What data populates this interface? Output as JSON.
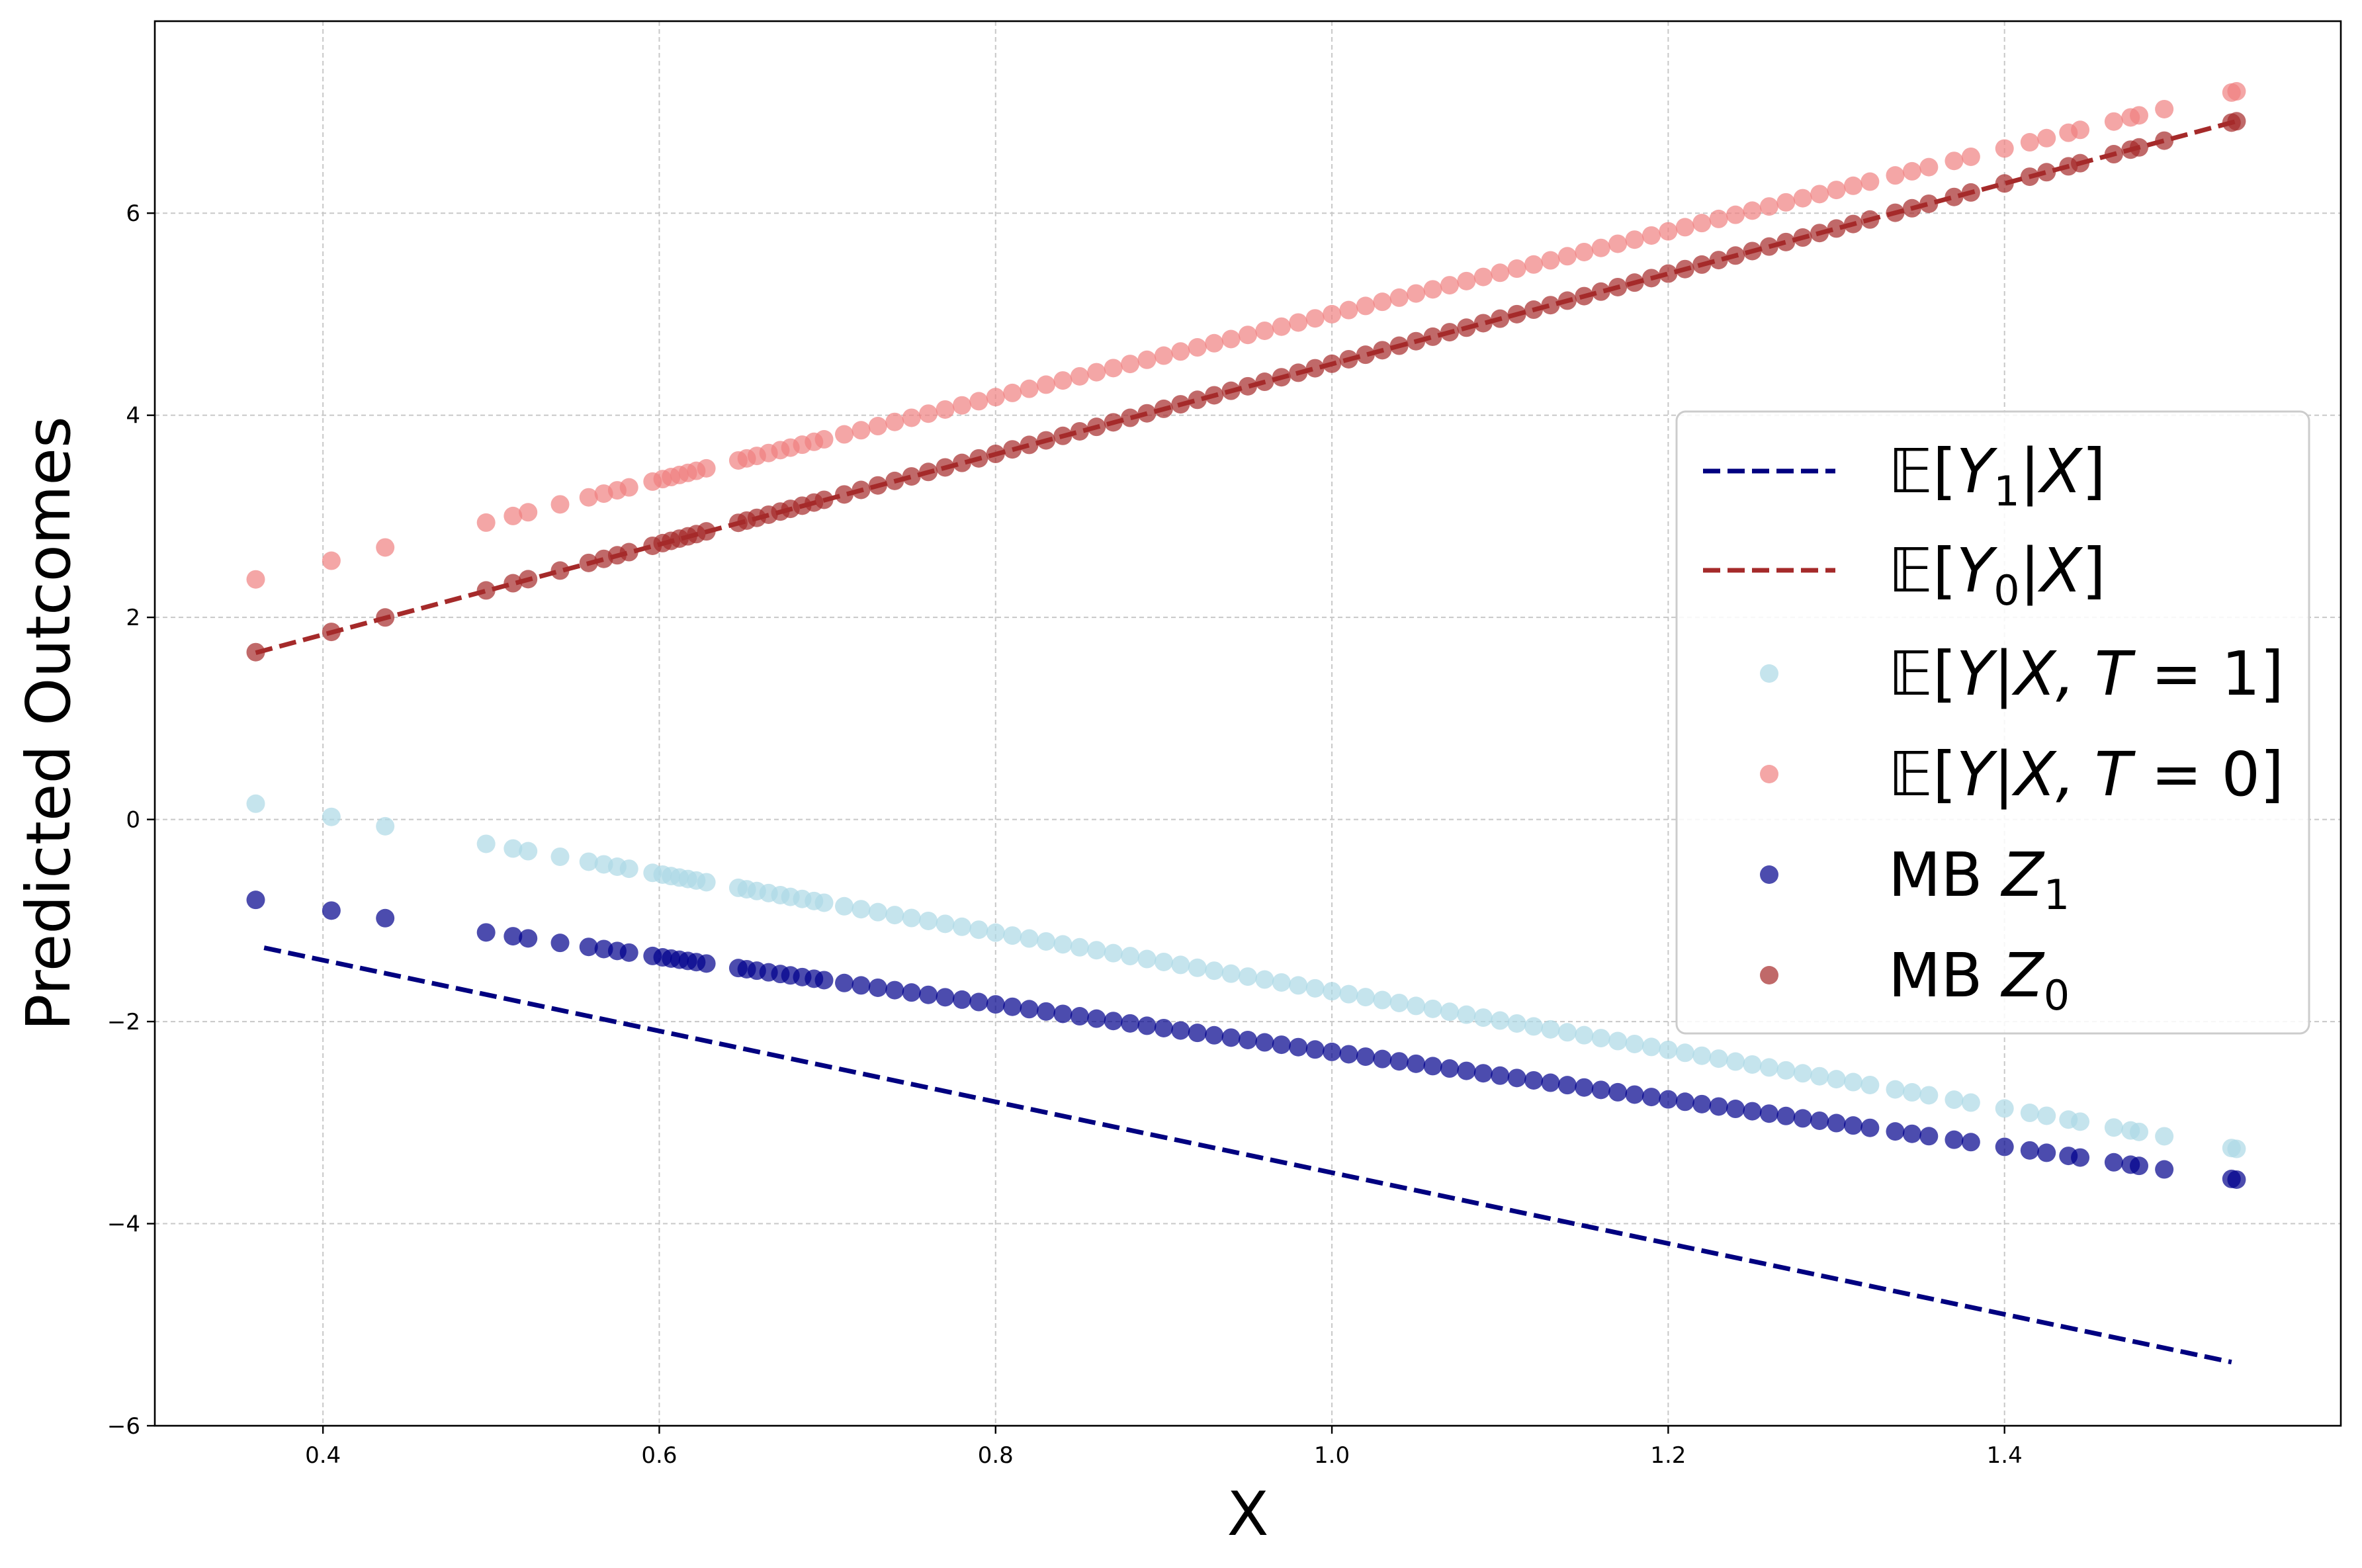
{
  "chart_data": {
    "type": "scatter",
    "title": "",
    "xlabel": "X",
    "ylabel": "Predicted Outcomes",
    "xlim": [
      0.3,
      1.6
    ],
    "ylim": [
      -6,
      7.9
    ],
    "xticks": [
      "0.4",
      "0.6",
      "0.8",
      "1.0",
      "1.2",
      "1.4"
    ],
    "xtick_values": [
      0.4,
      0.6,
      0.8,
      1.0,
      1.2,
      1.4
    ],
    "yticks": [
      "−6",
      "−4",
      "−2",
      "0",
      "2",
      "4",
      "6"
    ],
    "ytick_values": [
      -6,
      -4,
      -2,
      0,
      2,
      4,
      6
    ],
    "grid": true,
    "legend_position": "center-right",
    "x_points": [
      0.36,
      0.405,
      0.437,
      0.497,
      0.513,
      0.522,
      0.541,
      0.558,
      0.567,
      0.575,
      0.582,
      0.596,
      0.602,
      0.607,
      0.612,
      0.617,
      0.622,
      0.628,
      0.647,
      0.652,
      0.658,
      0.665,
      0.672,
      0.678,
      0.685,
      0.692,
      0.698,
      0.71,
      0.72,
      0.73,
      0.74,
      0.75,
      0.76,
      0.77,
      0.78,
      0.79,
      0.8,
      0.81,
      0.82,
      0.83,
      0.84,
      0.85,
      0.86,
      0.87,
      0.88,
      0.89,
      0.9,
      0.91,
      0.92,
      0.93,
      0.94,
      0.95,
      0.96,
      0.97,
      0.98,
      0.99,
      1.0,
      1.01,
      1.02,
      1.03,
      1.04,
      1.05,
      1.06,
      1.07,
      1.08,
      1.09,
      1.1,
      1.11,
      1.12,
      1.13,
      1.14,
      1.15,
      1.16,
      1.17,
      1.18,
      1.19,
      1.2,
      1.21,
      1.22,
      1.23,
      1.24,
      1.25,
      1.26,
      1.27,
      1.28,
      1.29,
      1.3,
      1.31,
      1.32,
      1.335,
      1.345,
      1.355,
      1.37,
      1.38,
      1.4,
      1.415,
      1.425,
      1.438,
      1.445,
      1.465,
      1.475,
      1.48,
      1.495,
      1.535,
      1.538
    ],
    "series": [
      {
        "name": "𝔼[Y₁|X]",
        "kind": "line",
        "style": "dashed",
        "color": "#000080",
        "intercept": 0.0,
        "slope": -3.5,
        "x_range": [
          0.365,
          1.535
        ],
        "y": [
          -1.27,
          -5.37
        ]
      },
      {
        "name": "𝔼[Y₀|X]",
        "kind": "line",
        "style": "dashed",
        "color": "#a52a2a",
        "intercept": 0.05,
        "slope": 4.46,
        "x_range": [
          0.36,
          1.538
        ],
        "y": [
          1.65,
          6.91
        ]
      },
      {
        "name": "𝔼[Y|X,T=1]",
        "kind": "scatter",
        "color": "#add8e6",
        "intercept": 1.2,
        "slope": -2.9
      },
      {
        "name": "𝔼[Y|X,T=0]",
        "kind": "scatter",
        "color": "#f08080",
        "intercept": 0.9,
        "slope": 4.1
      },
      {
        "name": "MB Z₁",
        "kind": "scatter",
        "color": "#00008b",
        "intercept": 0.05,
        "slope": -2.35
      },
      {
        "name": "MB Z₀",
        "kind": "scatter",
        "color": "#a52a2a",
        "intercept": 0.05,
        "slope": 4.46
      }
    ]
  },
  "legend": {
    "entries": [
      {
        "prefix": "𝔼[",
        "var": "Y",
        "sub": "1",
        "suffix": "|",
        "var2": "X",
        "tail": "]"
      },
      {
        "prefix": "𝔼[",
        "var": "Y",
        "sub": "0",
        "suffix": "|",
        "var2": "X",
        "tail": "]"
      },
      {
        "prefix": "𝔼[",
        "var": "Y",
        "sub": "",
        "suffix": "|",
        "var2": "X, T",
        "tail": " = 1]"
      },
      {
        "prefix": "𝔼[",
        "var": "Y",
        "sub": "",
        "suffix": "|",
        "var2": "X, T",
        "tail": " = 0]"
      },
      {
        "prefix": "MB ",
        "var": "Z",
        "sub": "1",
        "suffix": "",
        "var2": "",
        "tail": ""
      },
      {
        "prefix": "MB ",
        "var": "Z",
        "sub": "0",
        "suffix": "",
        "var2": "",
        "tail": ""
      }
    ]
  }
}
